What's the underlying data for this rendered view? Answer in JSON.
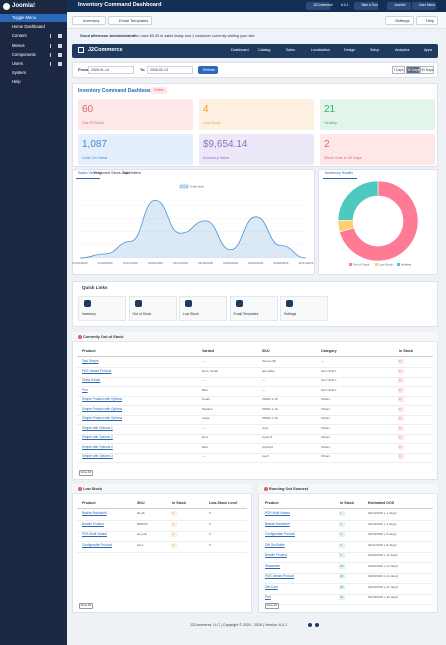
{
  "sidebar": {
    "brand": "Joomla!",
    "items": [
      "Toggle Menu",
      "Home Dashboard",
      "Content",
      "Menus",
      "Components",
      "Users",
      "System",
      "Help"
    ]
  },
  "header": {
    "title": "Inventory Command Dashboard",
    "buttons": [
      "J2Commerce",
      "6.0.1",
      "Take a Tour",
      "Joomla!",
      "User Menu"
    ]
  },
  "toolbar": {
    "left": [
      "Inventory",
      "Email Templates"
    ],
    "right": [
      "Settings",
      "Help"
    ]
  },
  "alert": {
    "greeting": "Good afternoon Administrator!",
    "text": "You have $0.00 in sales today and 1 customer currently visiting your site."
  },
  "nav": {
    "brand": "J2Commerce",
    "items": [
      "Dashboard",
      "Catalog",
      "Sales",
      "Localization",
      "Design",
      "Setup",
      "Analytics",
      "Apps"
    ]
  },
  "filter": {
    "from_label": "From",
    "from": "2026-01-14",
    "to_label": "To",
    "to": "2026-02-13",
    "refresh": "Refresh",
    "ranges": [
      "7 Days",
      "30 Days",
      "90 Days"
    ]
  },
  "dashboard": {
    "title": "Inventory Command Dashboard",
    "badge": "Online",
    "stats": [
      {
        "value": "60",
        "label": "Out Of Stock"
      },
      {
        "value": "4",
        "label": "Low Stock"
      },
      {
        "value": "21",
        "label": "Healthy"
      },
      {
        "value": "1,087",
        "label": "Units On Hand"
      },
      {
        "value": "$9,654.14",
        "label": "Inventory Value"
      },
      {
        "value": "2",
        "label": "Stock Outs In 30 Days"
      }
    ]
  },
  "chart_tabs": [
    "Sales Velocity",
    "Projected Stock-Outs",
    "Top Sellers"
  ],
  "chart_data": [
    {
      "type": "line",
      "categories": [
        "01/15/2026",
        "01/18/2026",
        "01/21/2026",
        "01/24/2026",
        "01/27/2026",
        "01/30/2026",
        "02/02/2026",
        "02/05/2026",
        "02/08/2026",
        "02/11/2026"
      ],
      "series": [
        {
          "name": "Units Sold",
          "color": "#4a90d9",
          "values": [
            0,
            0.5,
            2,
            7,
            3,
            4.5,
            1,
            5,
            1.5,
            0
          ]
        }
      ],
      "ylim": [
        0,
        8
      ]
    },
    {
      "type": "pie",
      "title": "Inventory Health",
      "categories": [
        "Out of Stock",
        "Low Stock",
        "Healthy"
      ],
      "values": [
        60,
        4,
        21
      ],
      "colors": [
        "#ff7a95",
        "#ffd06b",
        "#4dc9c0"
      ]
    }
  ],
  "quick_links": {
    "title": "Quick Links",
    "items": [
      "Inventory",
      "Out of Stock",
      "Low Stock",
      "Email Templates",
      "Settings"
    ]
  },
  "out_of_stock": {
    "title": "Currently Out of Stock",
    "columns": [
      "Product",
      "Variant",
      "SKU",
      "Category",
      "In Stock"
    ],
    "rows": [
      [
        "Test Simple",
        "—",
        "thermo-98",
        "—",
        "0"
      ],
      [
        "PDS Variant Product",
        "Red • Small",
        "abc-kaba",
        "Test Child 1",
        "0"
      ],
      [
        "Glass Holder",
        "—",
        "—",
        "Test Child 1",
        "0"
      ],
      [
        "Pen",
        "Blue",
        "—",
        "Test Child 1",
        "0"
      ],
      [
        "Simple Product with Options",
        "Small",
        "PMDK-1-16",
        "Others",
        "0"
      ],
      [
        "Simple Product with Options",
        "Medium",
        "PMDK-1-16",
        "Others",
        "0"
      ],
      [
        "Simple Product with Options",
        "Large",
        "PMDK-1-16",
        "Others",
        "0"
      ],
      [
        "Simple with Options 1",
        "—",
        "cup1",
        "Others",
        "0"
      ],
      [
        "Simple with Options 2",
        "Red",
        "cup2-r3",
        "Others",
        "0"
      ],
      [
        "Simple with Options 2",
        "Blue",
        "cup2-b3",
        "Others",
        "0"
      ],
      [
        "Simple with Options 3",
        "—",
        "cup3",
        "Others",
        "0"
      ]
    ],
    "button": "View All"
  },
  "low_stock": {
    "title": "Low Stock",
    "columns": [
      "Product",
      "SKU",
      "In Stock",
      "Low-Stock Level"
    ],
    "rows": [
      [
        "Beside Bookshelf",
        "bk-46",
        "3",
        "5"
      ],
      [
        "Bundle Product",
        "BPROD",
        "2",
        "5"
      ],
      [
        "PDS Multi Variant",
        "pk-pmk",
        "1",
        "5"
      ],
      [
        "Configurable Product",
        "cfg-1",
        "4",
        "5"
      ]
    ],
    "button": "View All"
  },
  "running_out": {
    "title": "Running Out Soonest",
    "columns": [
      "Product",
      "In Stock",
      "Estimated OOS"
    ],
    "rows": [
      [
        "PDS Multi Variant",
        "1",
        "02/14/2026 (~1 days)"
      ],
      [
        "Beside Bookshelf",
        "3",
        "02/16/2026 (~3 days)"
      ],
      [
        "Configurable Product",
        "4",
        "02/18/2026 (~5 days)"
      ],
      [
        "Gift Set Bottle",
        "6",
        "02/21/2026 (~8 days)"
      ],
      [
        "Bundle Product",
        "2",
        "02/24/2026 (~11 days)"
      ],
      [
        "Glassware",
        "18",
        "03/02/2026 (~17 days)"
      ],
      [
        "PDS Variant Product",
        "20",
        "03/06/2026 (~21 days)"
      ],
      [
        "Gift Card",
        "28",
        "03/12/2026 (~27 days)"
      ],
      [
        "Pen",
        "34",
        "03/18/2026 (~33 days)"
      ]
    ],
    "button": "View All"
  },
  "footer": "J2Commerce, LLC | Copyright © 2024 - 2026 | Version: 6.0.1"
}
